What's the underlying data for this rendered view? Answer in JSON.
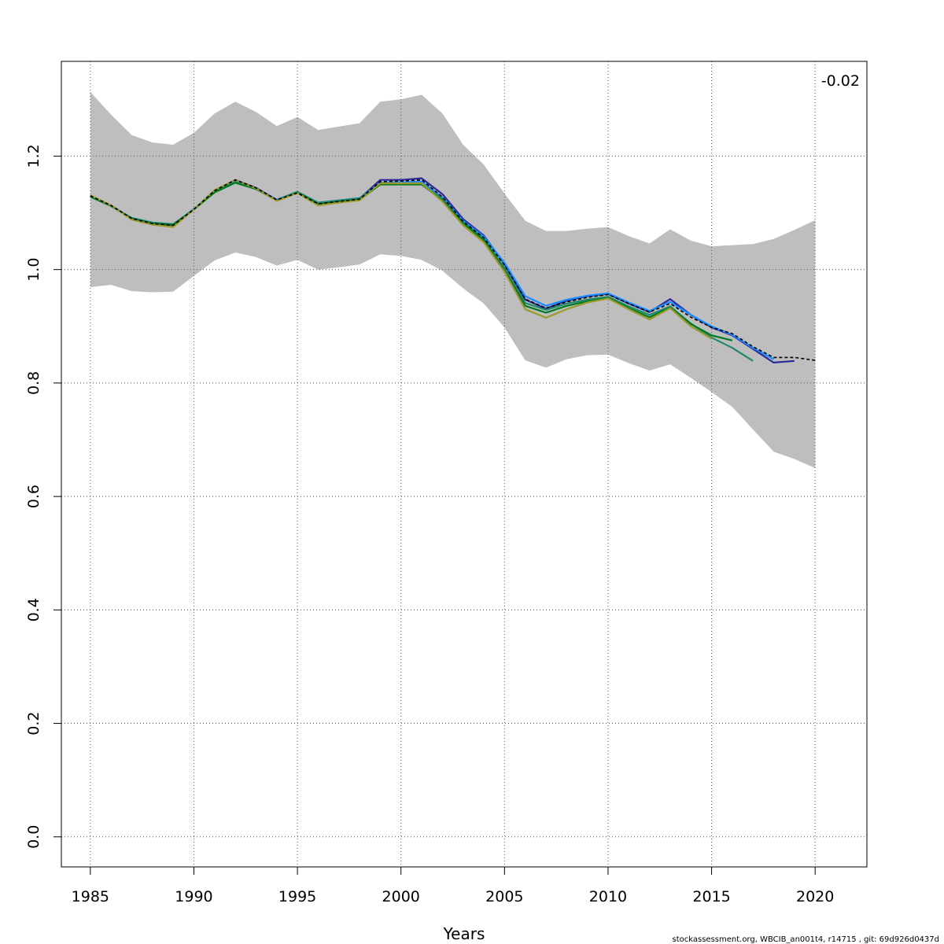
{
  "chart_data": {
    "type": "line",
    "xlabel": "Years",
    "ylabel": "",
    "xlim": [
      1983.6,
      2022.5
    ],
    "ylim": [
      -0.053,
      1.367
    ],
    "xticks": [
      1985,
      1990,
      1995,
      2000,
      2005,
      2010,
      2015,
      2020
    ],
    "yticks": [
      0.0,
      0.2,
      0.4,
      0.6,
      0.8,
      1.0,
      1.2
    ],
    "ytick_labels": [
      "0.0",
      "0.2",
      "0.4",
      "0.6",
      "0.8",
      "1.0",
      "1.2"
    ],
    "grid": true,
    "annotation": "-0.02",
    "footer": "stockassessment.org, WBCIB_an001t4, r14715 , git: 69d926d0437d",
    "band": {
      "x": [
        1985,
        1986,
        1987,
        1988,
        1989,
        1990,
        1991,
        1992,
        1993,
        1994,
        1995,
        1996,
        1997,
        1998,
        1999,
        2000,
        2001,
        2002,
        2003,
        2004,
        2005,
        2006,
        2007,
        2008,
        2009,
        2010,
        2011,
        2012,
        2013,
        2014,
        2015,
        2016,
        2017,
        2018,
        2019,
        2020
      ],
      "upper": [
        1.313,
        1.273,
        1.237,
        1.224,
        1.22,
        1.241,
        1.275,
        1.296,
        1.278,
        1.253,
        1.269,
        1.246,
        1.252,
        1.258,
        1.296,
        1.3,
        1.308,
        1.275,
        1.22,
        1.185,
        1.134,
        1.086,
        1.068,
        1.068,
        1.072,
        1.075,
        1.059,
        1.046,
        1.071,
        1.051,
        1.041,
        1.043,
        1.045,
        1.054,
        1.07,
        1.087
      ],
      "lower": [
        0.969,
        0.973,
        0.962,
        0.96,
        0.961,
        0.989,
        1.016,
        1.03,
        1.022,
        1.007,
        1.017,
        1.0,
        1.004,
        1.009,
        1.027,
        1.024,
        1.017,
        0.998,
        0.967,
        0.94,
        0.898,
        0.84,
        0.827,
        0.842,
        0.849,
        0.85,
        0.835,
        0.822,
        0.833,
        0.809,
        0.784,
        0.758,
        0.718,
        0.679,
        0.666,
        0.65
      ],
      "color": "#bebebe"
    },
    "series": [
      {
        "color": "#000000",
        "dashed": true,
        "x": [
          1985,
          1986,
          1987,
          1988,
          1989,
          1990,
          1991,
          1992,
          1993,
          1994,
          1995,
          1996,
          1997,
          1998,
          1999,
          2000,
          2001,
          2002,
          2003,
          2004,
          2005,
          2006,
          2007,
          2008,
          2009,
          2010,
          2011,
          2012,
          2013,
          2014,
          2015,
          2016,
          2017,
          2018,
          2019,
          2020
        ],
        "values": [
          1.13,
          1.113,
          1.09,
          1.081,
          1.078,
          1.106,
          1.139,
          1.158,
          1.144,
          1.123,
          1.135,
          1.116,
          1.12,
          1.124,
          1.155,
          1.156,
          1.158,
          1.128,
          1.085,
          1.056,
          1.008,
          0.948,
          0.932,
          0.943,
          0.951,
          0.956,
          0.94,
          0.925,
          0.94,
          0.916,
          0.898,
          0.887,
          0.864,
          0.845,
          0.845,
          0.84
        ]
      },
      {
        "color": "#2c2a9a",
        "dashed": false,
        "x": [
          1985,
          1986,
          1987,
          1988,
          1989,
          1990,
          1991,
          1992,
          1993,
          1994,
          1995,
          1996,
          1997,
          1998,
          1999,
          2000,
          2001,
          2002,
          2003,
          2004,
          2005,
          2006,
          2007,
          2008,
          2009,
          2010,
          2011,
          2012,
          2013,
          2014,
          2015,
          2016,
          2017,
          2018,
          2019
        ],
        "values": [
          1.13,
          1.113,
          1.09,
          1.081,
          1.078,
          1.106,
          1.139,
          1.158,
          1.144,
          1.123,
          1.137,
          1.116,
          1.121,
          1.125,
          1.158,
          1.158,
          1.161,
          1.133,
          1.089,
          1.06,
          1.01,
          0.947,
          0.931,
          0.945,
          0.953,
          0.957,
          0.94,
          0.925,
          0.948,
          0.92,
          0.898,
          0.884,
          0.86,
          0.836,
          0.839
        ]
      },
      {
        "color": "#1a8cff",
        "dashed": false,
        "x": [
          1985,
          1986,
          1987,
          1988,
          1989,
          1990,
          1991,
          1992,
          1993,
          1994,
          1995,
          1996,
          1997,
          1998,
          1999,
          2000,
          2001,
          2002,
          2003,
          2004,
          2005,
          2006,
          2007,
          2008,
          2009,
          2010,
          2011,
          2012,
          2013,
          2014,
          2015,
          2016,
          2017,
          2018
        ],
        "values": [
          1.129,
          1.112,
          1.09,
          1.082,
          1.079,
          1.107,
          1.138,
          1.155,
          1.143,
          1.123,
          1.137,
          1.118,
          1.122,
          1.126,
          1.153,
          1.154,
          1.155,
          1.127,
          1.086,
          1.058,
          1.012,
          0.953,
          0.936,
          0.947,
          0.954,
          0.958,
          0.942,
          0.927,
          0.943,
          0.92,
          0.9,
          0.885,
          0.862,
          0.842
        ]
      },
      {
        "color": "#1f8a70",
        "dashed": false,
        "x": [
          1985,
          1986,
          1987,
          1988,
          1989,
          1990,
          1991,
          1992,
          1993,
          1994,
          1995,
          1996,
          1997,
          1998,
          1999,
          2000,
          2001,
          2002,
          2003,
          2004,
          2005,
          2006,
          2007,
          2008,
          2009,
          2010,
          2011,
          2012,
          2013,
          2014,
          2015,
          2016,
          2017
        ],
        "values": [
          1.128,
          1.112,
          1.091,
          1.083,
          1.08,
          1.106,
          1.138,
          1.154,
          1.142,
          1.122,
          1.137,
          1.118,
          1.122,
          1.126,
          1.151,
          1.151,
          1.151,
          1.124,
          1.083,
          1.054,
          1.003,
          0.941,
          0.929,
          0.94,
          0.947,
          0.952,
          0.935,
          0.92,
          0.935,
          0.905,
          0.88,
          0.862,
          0.839
        ]
      },
      {
        "color": "#007a1f",
        "dashed": false,
        "x": [
          1985,
          1986,
          1987,
          1988,
          1989,
          1990,
          1991,
          1992,
          1993,
          1994,
          1995,
          1996,
          1997,
          1998,
          1999,
          2000,
          2001,
          2002,
          2003,
          2004,
          2005,
          2006,
          2007,
          2008,
          2009,
          2010,
          2011,
          2012,
          2013,
          2014,
          2015,
          2016
        ],
        "values": [
          1.129,
          1.112,
          1.09,
          1.081,
          1.079,
          1.106,
          1.136,
          1.153,
          1.142,
          1.122,
          1.136,
          1.115,
          1.12,
          1.123,
          1.15,
          1.15,
          1.15,
          1.122,
          1.081,
          1.052,
          0.998,
          0.936,
          0.924,
          0.936,
          0.944,
          0.95,
          0.932,
          0.916,
          0.933,
          0.904,
          0.884,
          0.875
        ]
      },
      {
        "color": "#9a9a2a",
        "dashed": false,
        "x": [
          1985,
          1986,
          1987,
          1988,
          1989,
          1990,
          1991,
          1992,
          1993,
          1994,
          1995,
          1996,
          1997,
          1998,
          1999,
          2000,
          2001,
          2002,
          2003,
          2004,
          2005,
          2006,
          2007,
          2008,
          2009,
          2010,
          2011,
          2012,
          2013,
          2014,
          2015
        ],
        "values": [
          1.131,
          1.113,
          1.088,
          1.079,
          1.075,
          1.106,
          1.14,
          1.158,
          1.143,
          1.121,
          1.135,
          1.113,
          1.118,
          1.122,
          1.152,
          1.152,
          1.152,
          1.12,
          1.078,
          1.048,
          0.996,
          0.93,
          0.915,
          0.93,
          0.942,
          0.949,
          0.93,
          0.912,
          0.932,
          0.9,
          0.878
        ]
      }
    ]
  }
}
